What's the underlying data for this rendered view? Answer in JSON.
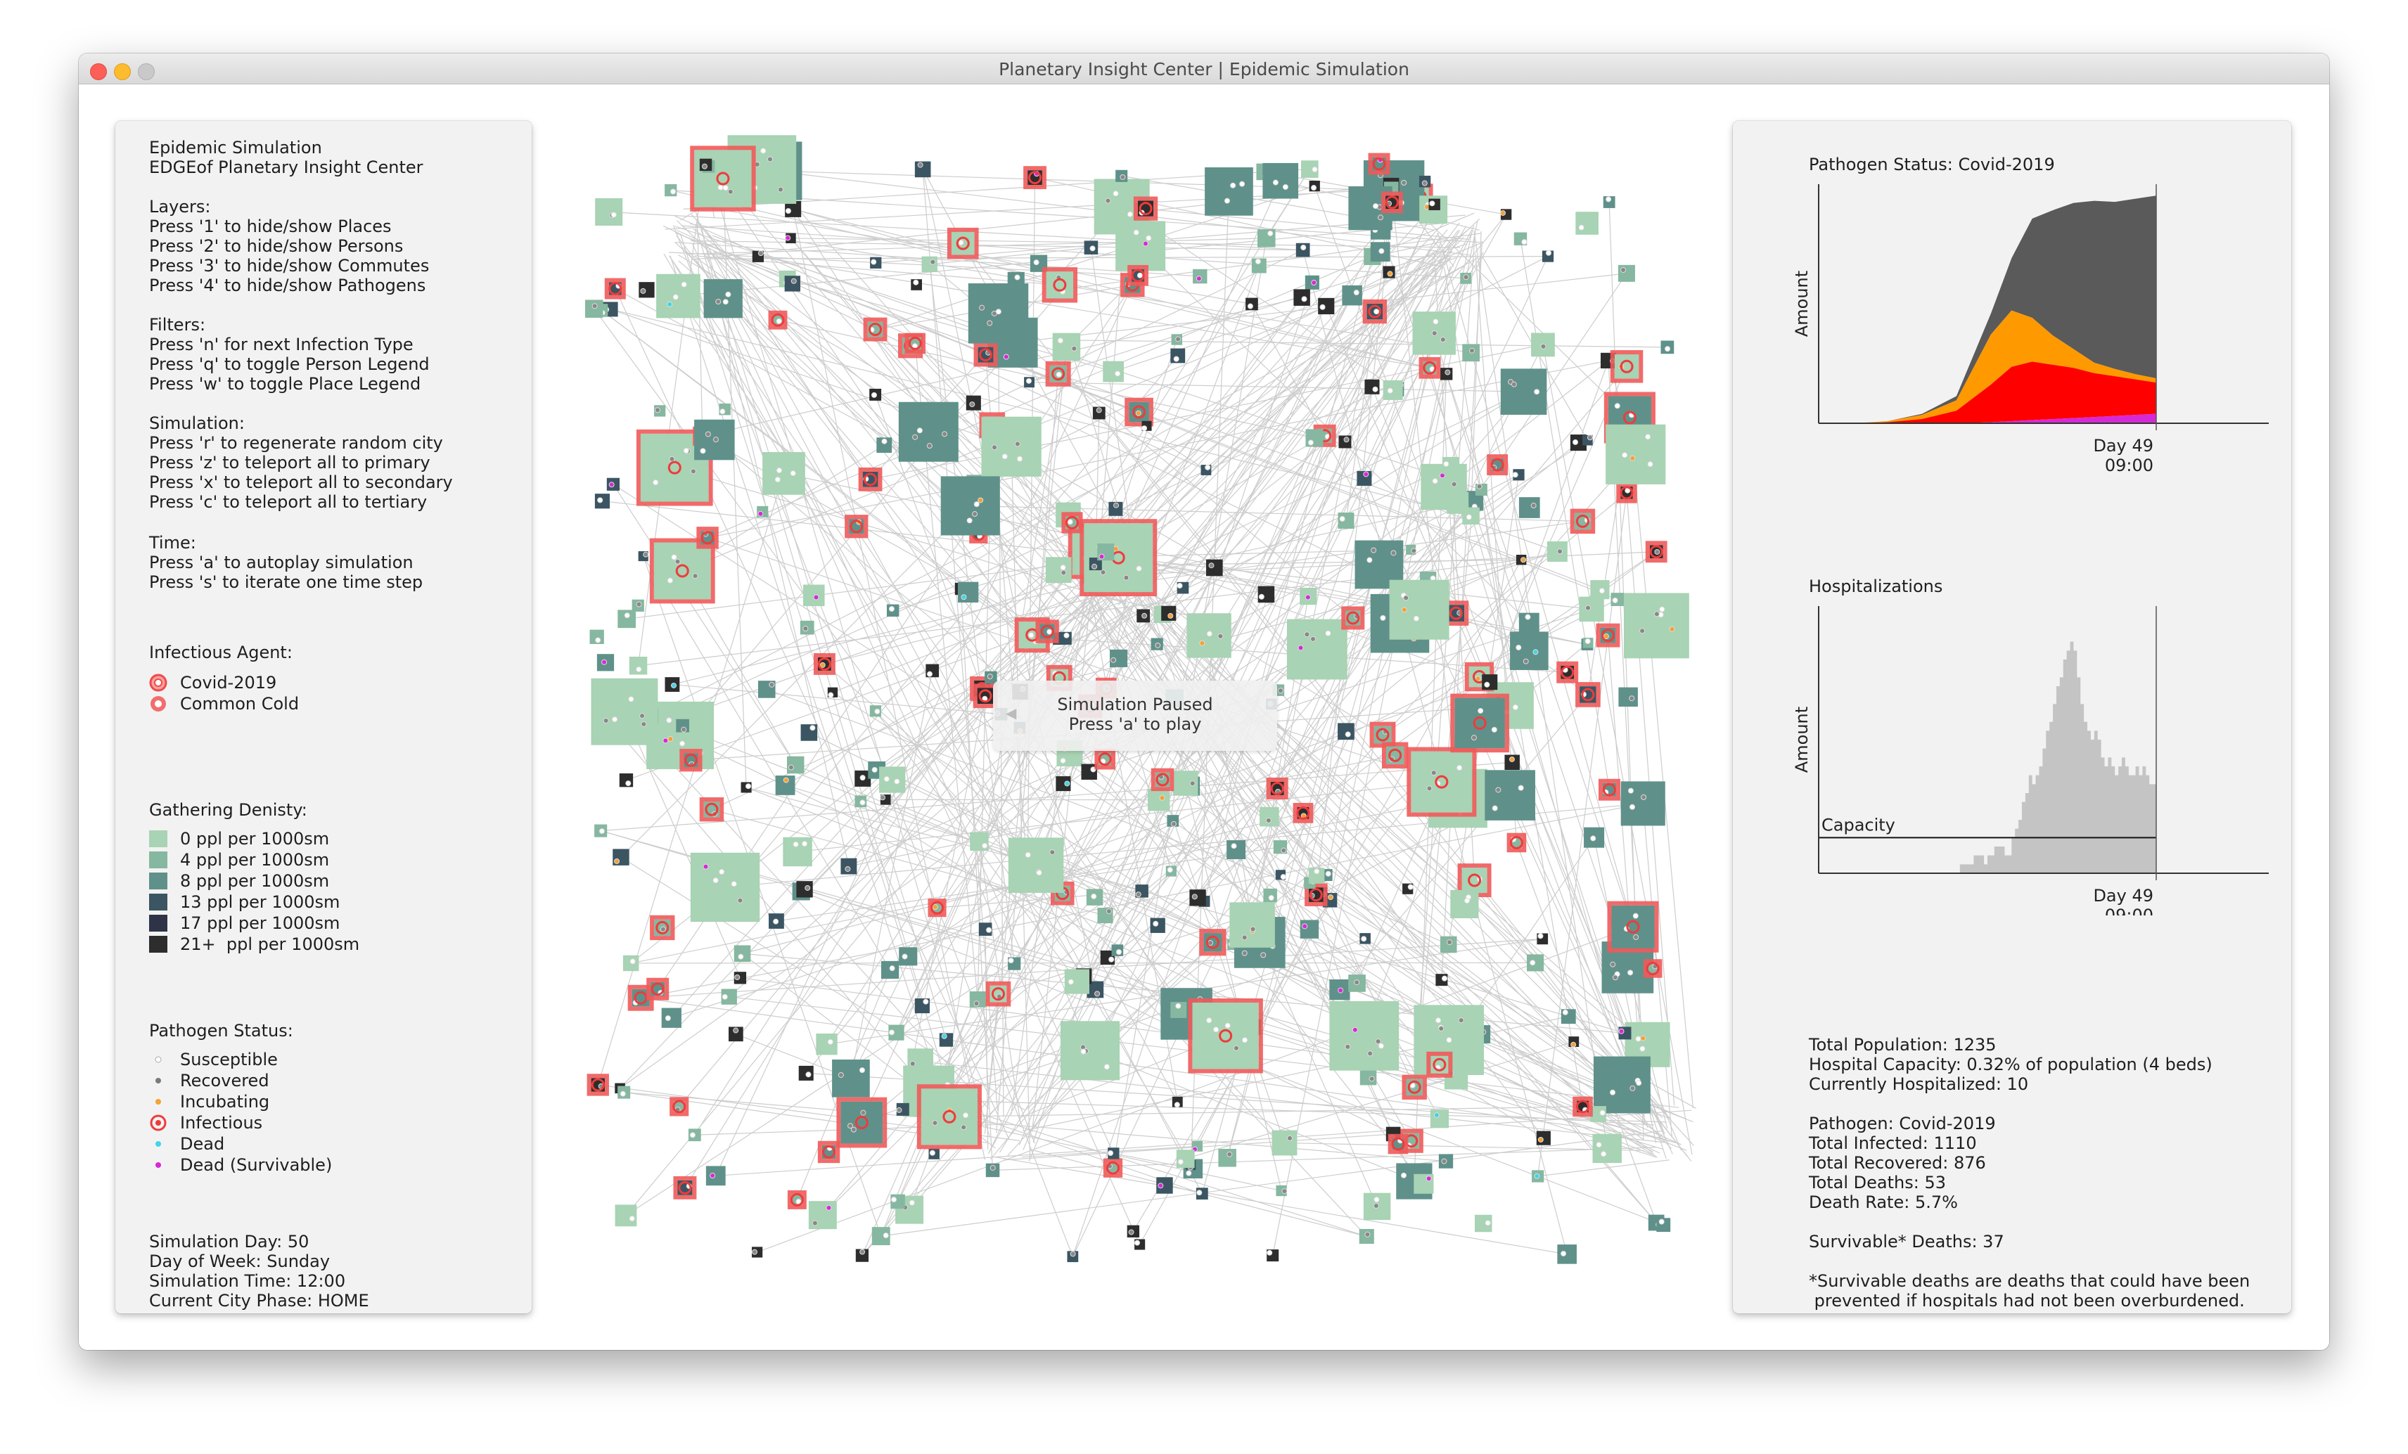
{
  "window": {
    "title": "Planetary Insight Center | Epidemic Simulation"
  },
  "left": {
    "header": [
      "Epidemic Simulation",
      "EDGEof Planetary Insight Center"
    ],
    "layers_title": "Layers:",
    "layers": [
      "Press '1' to hide/show Places",
      "Press '2' to hide/show Persons",
      "Press '3' to hide/show Commutes",
      "Press '4' to hide/show Pathogens"
    ],
    "filters_title": "Filters:",
    "filters": [
      "Press 'n' for next Infection Type",
      "Press 'q' to toggle Person Legend",
      "Press 'w' to toggle Place Legend"
    ],
    "simulation_title": "Simulation:",
    "simulation": [
      "Press 'r' to regenerate random city",
      "Press 'z' to teleport all to primary",
      "Press 'x' to teleport all to secondary",
      "Press 'c' to teleport all to tertiary"
    ],
    "time_title": "Time:",
    "time": [
      "Press 'a' to autoplay simulation",
      "Press 's' to iterate one time step"
    ],
    "agent_title": "Infectious Agent:",
    "agents": [
      {
        "label": "Covid-2019",
        "color": "#f26d6d"
      },
      {
        "label": "Common Cold",
        "color": "#f26d6d"
      }
    ],
    "density_title": "Gathering Denisty:",
    "density": [
      {
        "label": "0 ppl per 1000sm",
        "color": "#a8d3b4"
      },
      {
        "label": "4 ppl per 1000sm",
        "color": "#86b7a0"
      },
      {
        "label": "8 ppl per 1000sm",
        "color": "#5f918a"
      },
      {
        "label": "13 ppl per 1000sm",
        "color": "#3b5562"
      },
      {
        "label": "17 ppl per 1000sm",
        "color": "#2f3347"
      },
      {
        "label": "21+  ppl per 1000sm",
        "color": "#2d2d2d"
      }
    ],
    "status_title": "Pathogen Status:",
    "statuses": [
      {
        "label": "Susceptible",
        "color": "#ffffff"
      },
      {
        "label": "Recovered",
        "color": "#7a7a7a"
      },
      {
        "label": "Incubating",
        "color": "#f5a133"
      },
      {
        "label": "Infectious",
        "color": "#ef3b3b"
      },
      {
        "label": "Dead",
        "color": "#3fd6e6"
      },
      {
        "label": "Dead (Survivable)",
        "color": "#d629d6"
      }
    ],
    "sim_info": [
      "Simulation Day: 50",
      "Day of Week: Sunday",
      "Simulation Time: 12:00",
      "Current City Phase: HOME"
    ]
  },
  "center": {
    "paused_line1": "Simulation Paused",
    "paused_line2": "Press 'a' to play"
  },
  "right": {
    "pathogen_chart_title": "Pathogen Status: Covid-2019",
    "hosp_chart_title": "Hospitalizations",
    "ylabel": "Amount",
    "x_label_day": "Day 49",
    "x_label_time": "09:00",
    "capacity_label": "Capacity",
    "stats1": [
      "Total Population: 1235",
      "Hospital Capacity: 0.32% of population (4 beds)",
      "Currently Hospitalized: 10"
    ],
    "stats2": [
      "Pathogen: Covid-2019",
      "Total Infected: 1110",
      "Total Recovered: 876",
      "Total Deaths: 53",
      "Death Rate: 5.7%"
    ],
    "survivable": "Survivable* Deaths: 37",
    "footnote": [
      "*Survivable deaths are deaths that could have been",
      " prevented if hospitals had not been overburdened."
    ]
  },
  "chart_data": [
    {
      "type": "area",
      "title": "Pathogen Status: Covid-2019",
      "ylabel": "Amount",
      "x": [
        0,
        5,
        10,
        15,
        20,
        25,
        28,
        31,
        34,
        37,
        40,
        43,
        46,
        49
      ],
      "series": [
        {
          "color": "#d629d6",
          "values": [
            0,
            0,
            0,
            0,
            0,
            1,
            2,
            3,
            4,
            5,
            6,
            7,
            8,
            9
          ]
        },
        {
          "color": "#ff0000",
          "values": [
            0,
            0,
            1,
            4,
            12,
            36,
            52,
            56,
            52,
            48,
            42,
            38,
            34,
            30
          ]
        },
        {
          "color": "#ff9900",
          "values": [
            0,
            0,
            1,
            4,
            10,
            48,
            54,
            42,
            28,
            18,
            10,
            7,
            5,
            4
          ]
        },
        {
          "color": "#5a5a5a",
          "values": [
            0,
            0,
            0,
            1,
            4,
            20,
            50,
            95,
            120,
            140,
            155,
            160,
            168,
            175
          ]
        }
      ]
    },
    {
      "type": "area",
      "title": "Hospitalizations",
      "ylabel": "Amount",
      "capacity": 4,
      "values": [
        0,
        0,
        0,
        0,
        0,
        0,
        0,
        0,
        0,
        0,
        0,
        0,
        0,
        0,
        0,
        0,
        0,
        0,
        0,
        0,
        0,
        0,
        0,
        0,
        0,
        0,
        0,
        0,
        0,
        0,
        0,
        0,
        0,
        0,
        0,
        0,
        0,
        0,
        0,
        0,
        0,
        1,
        1,
        1,
        1,
        2,
        2,
        2,
        1,
        2,
        2,
        3,
        3,
        3,
        2,
        2,
        4,
        5,
        6,
        8,
        9,
        11,
        10,
        11,
        12,
        14,
        16,
        17,
        19,
        21,
        22,
        24,
        25,
        26,
        25,
        22,
        19,
        17,
        16,
        15,
        16,
        15,
        13,
        12,
        13,
        12,
        11,
        12,
        13,
        12,
        11,
        11,
        12,
        11,
        12,
        11,
        10,
        10
      ],
      "ylim": [
        0,
        30
      ]
    }
  ]
}
